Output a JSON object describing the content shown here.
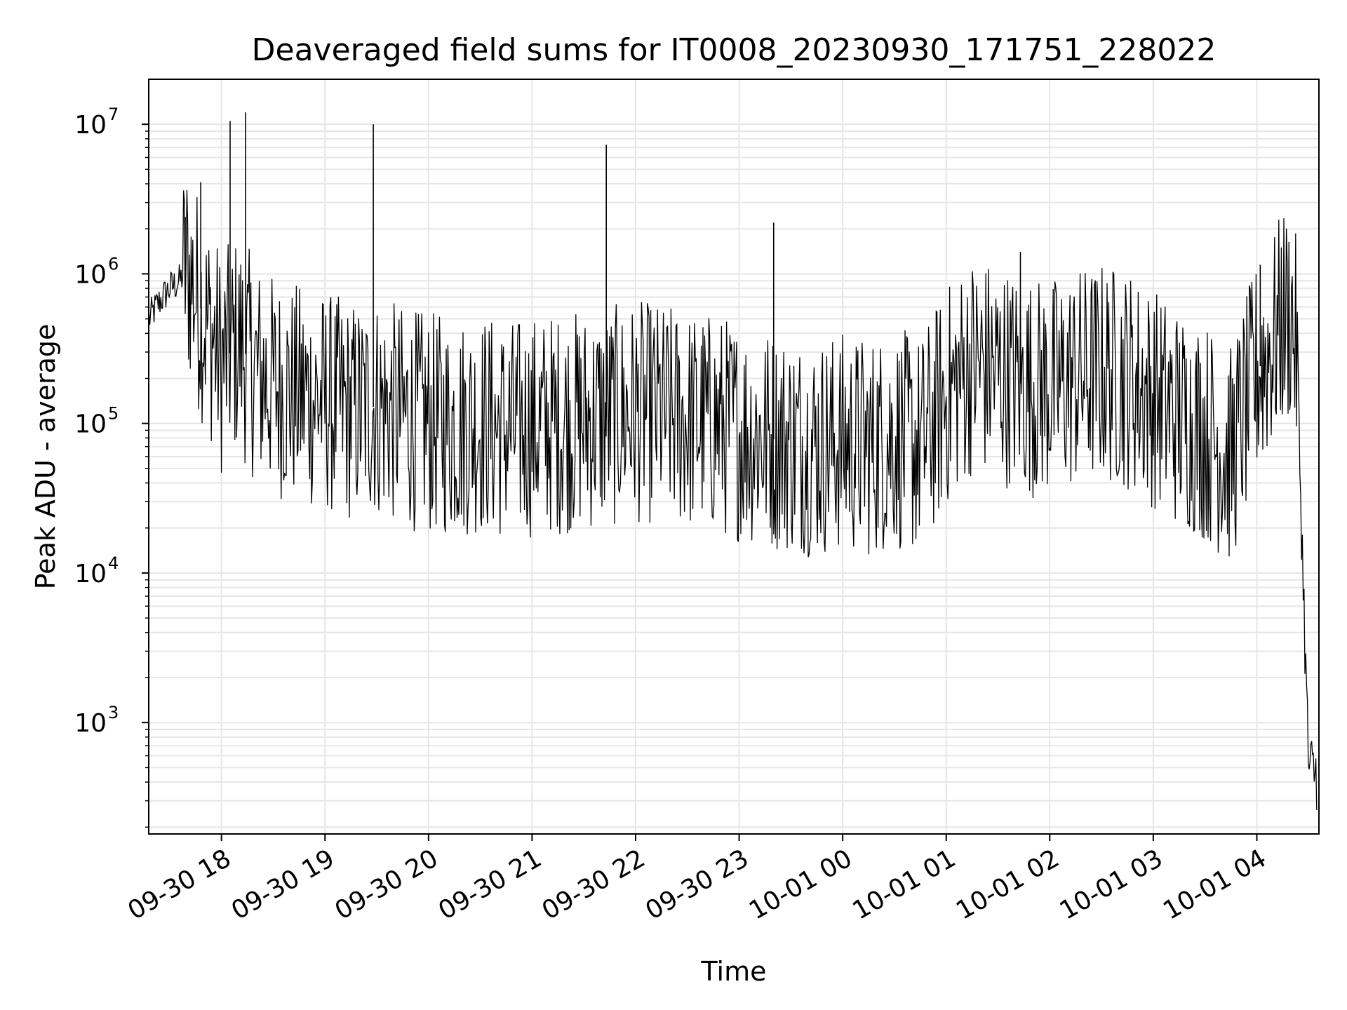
{
  "chart_data": {
    "type": "line",
    "title": "Deaveraged field sums for IT0008_20230930_171751_228022",
    "xlabel": "Time",
    "ylabel": "Peak ADU - average",
    "yscale": "log",
    "ylim": [
      180,
      20000000
    ],
    "xlim": [
      "2023-09-30 17:17:51",
      "2023-10-01 04:36:00"
    ],
    "grid": true,
    "colors": {
      "line": "#000000",
      "grid": "#e6e6e6",
      "axes": "#000000"
    },
    "y_ticks": [
      {
        "value": 1000,
        "base": "10",
        "exp": "3"
      },
      {
        "value": 10000,
        "base": "10",
        "exp": "4"
      },
      {
        "value": 100000,
        "base": "10",
        "exp": "5"
      },
      {
        "value": 1000000,
        "base": "10",
        "exp": "6"
      },
      {
        "value": 10000000,
        "base": "10",
        "exp": "7"
      }
    ],
    "x_ticks": [
      {
        "time": "2023-09-30 18:00",
        "label": "09-30 18"
      },
      {
        "time": "2023-09-30 19:00",
        "label": "09-30 19"
      },
      {
        "time": "2023-09-30 20:00",
        "label": "09-30 20"
      },
      {
        "time": "2023-09-30 21:00",
        "label": "09-30 21"
      },
      {
        "time": "2023-09-30 22:00",
        "label": "09-30 22"
      },
      {
        "time": "2023-09-30 23:00",
        "label": "09-30 23"
      },
      {
        "time": "2023-10-01 00:00",
        "label": "10-01 00"
      },
      {
        "time": "2023-10-01 01:00",
        "label": "10-01 01"
      },
      {
        "time": "2023-10-01 02:00",
        "label": "10-01 02"
      },
      {
        "time": "2023-10-01 03:00",
        "label": "10-01 03"
      },
      {
        "time": "2023-10-01 04:00",
        "label": "10-01 04"
      }
    ],
    "series": [
      {
        "x": [
          "2023-09-30 17:18",
          "2023-09-30 17:24",
          "2023-09-30 17:30",
          "2023-09-30 17:36",
          "2023-09-30 17:40",
          "2023-09-30 17:45",
          "2023-09-30 17:50",
          "2023-09-30 17:55",
          "2023-09-30 18:00",
          "2023-09-30 18:10",
          "2023-09-30 18:20",
          "2023-09-30 18:30",
          "2023-09-30 18:40",
          "2023-09-30 18:50",
          "2023-09-30 19:00",
          "2023-09-30 19:15",
          "2023-09-30 19:30",
          "2023-09-30 19:45",
          "2023-09-30 20:00",
          "2023-09-30 20:15",
          "2023-09-30 20:30",
          "2023-09-30 20:45",
          "2023-09-30 21:00",
          "2023-09-30 21:15",
          "2023-09-30 21:30",
          "2023-09-30 21:45",
          "2023-09-30 22:00",
          "2023-09-30 22:15",
          "2023-09-30 22:30",
          "2023-09-30 22:45",
          "2023-09-30 23:00",
          "2023-09-30 23:15",
          "2023-09-30 23:30",
          "2023-09-30 23:45",
          "2023-10-01 00:00",
          "2023-10-01 00:15",
          "2023-10-01 00:30",
          "2023-10-01 00:45",
          "2023-10-01 01:00",
          "2023-10-01 01:15",
          "2023-10-01 01:30",
          "2023-10-01 01:45",
          "2023-10-01 02:00",
          "2023-10-01 02:15",
          "2023-10-01 02:30",
          "2023-10-01 02:45",
          "2023-10-01 03:00",
          "2023-10-01 03:15",
          "2023-10-01 03:30",
          "2023-10-01 03:45",
          "2023-10-01 04:00",
          "2023-10-01 04:10",
          "2023-10-01 04:15",
          "2023-10-01 04:20",
          "2023-10-01 04:23",
          "2023-10-01 04:25",
          "2023-10-01 04:30",
          "2023-10-01 04:35"
        ],
        "values": [
          500000,
          650000,
          800000,
          900000,
          1100000,
          750000,
          500000,
          380000,
          250000,
          350000,
          220000,
          180000,
          160000,
          150000,
          140000,
          120000,
          130000,
          110000,
          100000,
          95000,
          100000,
          90000,
          95000,
          100000,
          105000,
          110000,
          120000,
          115000,
          105000,
          100000,
          90000,
          80000,
          75000,
          70000,
          75000,
          70000,
          80000,
          70000,
          150000,
          250000,
          220000,
          180000,
          170000,
          200000,
          220000,
          200000,
          150000,
          110000,
          90000,
          60000,
          220000,
          350000,
          500000,
          550000,
          300000,
          50000,
          500,
          450
        ],
        "spikes": [
          {
            "x": "2023-09-30 17:39",
            "y": 2400000
          },
          {
            "x": "2023-09-30 17:48",
            "y": 4100000
          },
          {
            "x": "2023-09-30 18:05",
            "y": 10500000
          },
          {
            "x": "2023-09-30 18:14",
            "y": 12000000
          },
          {
            "x": "2023-09-30 19:28",
            "y": 10000000
          },
          {
            "x": "2023-09-30 21:43",
            "y": 7300000
          },
          {
            "x": "2023-09-30 23:20",
            "y": 2200000
          },
          {
            "x": "2023-10-01 01:43",
            "y": 1400000
          },
          {
            "x": "2023-10-01 04:02",
            "y": 1150000
          }
        ]
      }
    ]
  }
}
